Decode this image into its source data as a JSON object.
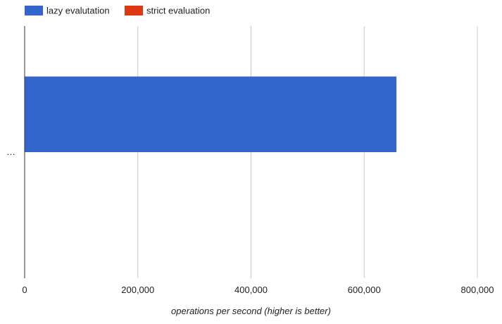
{
  "chart_data": {
    "type": "bar",
    "orientation": "horizontal",
    "categories": [
      "…"
    ],
    "series": [
      {
        "name": "lazy evalutation",
        "values": [
          657000
        ],
        "color": "#3366cc"
      },
      {
        "name": "strict evaluation",
        "values": [
          0
        ],
        "color": "#dc3912"
      }
    ],
    "xlabel": "operations per second (higher is better)",
    "ylabel": "",
    "xlim": [
      0,
      800000
    ],
    "xticks": [
      {
        "value": 0,
        "label": "0"
      },
      {
        "value": 200000,
        "label": "200,000"
      },
      {
        "value": 400000,
        "label": "400,000"
      },
      {
        "value": 600000,
        "label": "600,000"
      },
      {
        "value": 800000,
        "label": "800,000"
      }
    ],
    "grid": true,
    "legend": "top-left"
  }
}
